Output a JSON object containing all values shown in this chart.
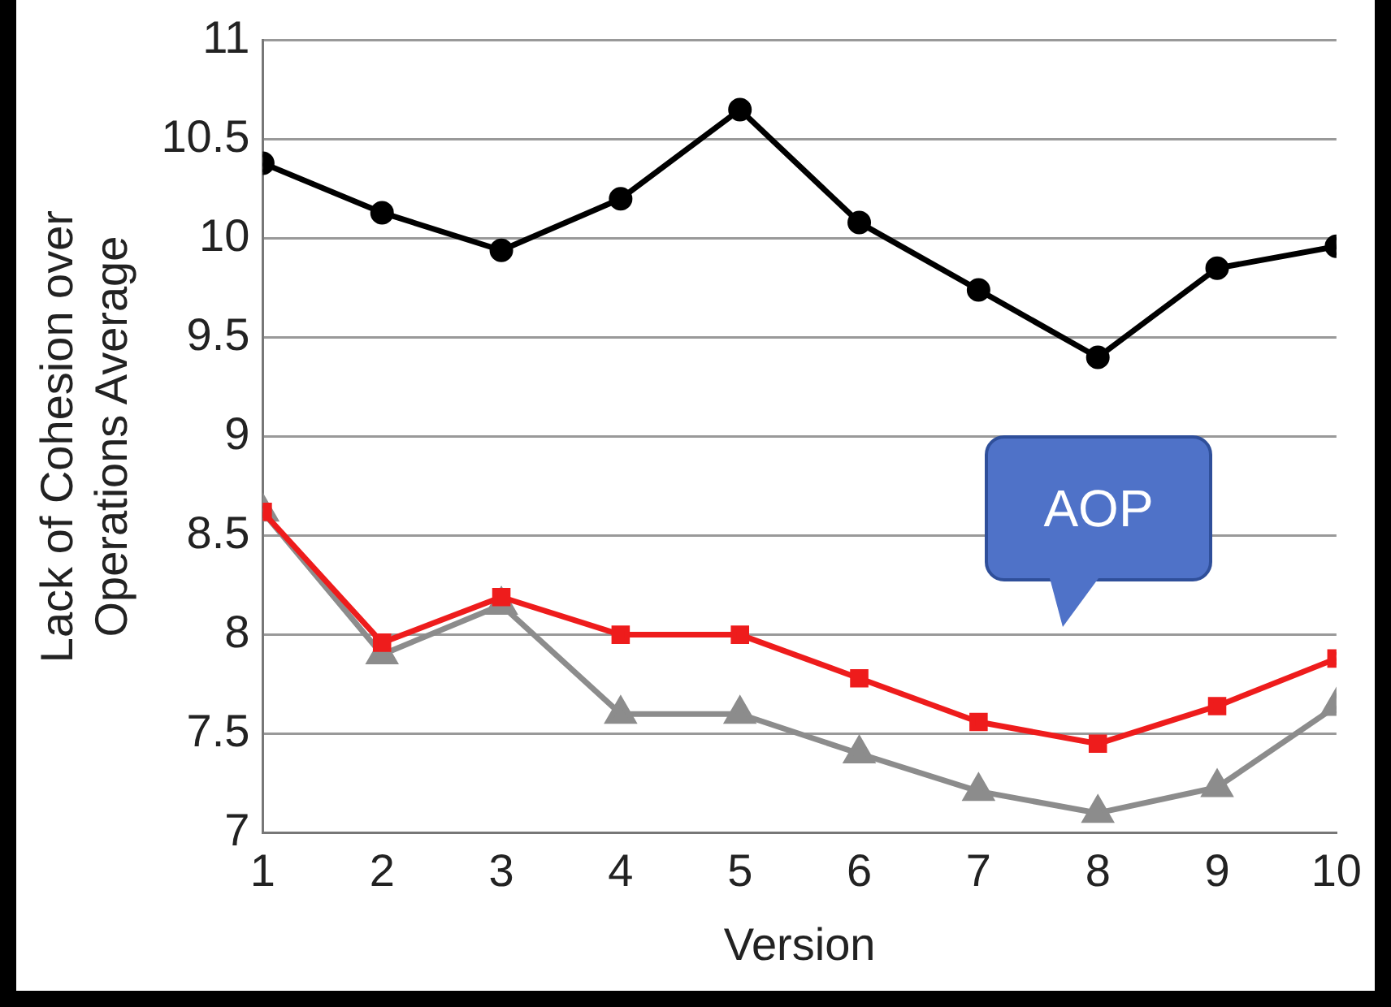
{
  "chart_data": {
    "type": "line",
    "xlabel": "Version",
    "ylabel": "Lack of Cohesion over Operations Average",
    "x": [
      1,
      2,
      3,
      4,
      5,
      6,
      7,
      8,
      9,
      10
    ],
    "xlim": [
      1,
      10
    ],
    "xticks": [
      1,
      2,
      3,
      4,
      5,
      6,
      7,
      8,
      9,
      10
    ],
    "ylim": [
      7,
      11
    ],
    "yticks": [
      7,
      7.5,
      8,
      8.5,
      9,
      9.5,
      10,
      10.5,
      11
    ],
    "grid": "y",
    "legend": false,
    "line_style": "solid",
    "series": [
      {
        "color": "#000000",
        "marker": "circle",
        "values": [
          10.38,
          10.13,
          9.94,
          10.2,
          10.65,
          10.08,
          9.74,
          9.4,
          9.85,
          9.96
        ]
      },
      {
        "color": "#ee1c1c",
        "marker": "square",
        "values": [
          8.62,
          7.96,
          8.19,
          8.0,
          8.0,
          7.78,
          7.56,
          7.45,
          7.64,
          7.88
        ]
      },
      {
        "color": "#8c8c8c",
        "marker": "triangle",
        "values": [
          8.62,
          7.9,
          8.15,
          7.6,
          7.6,
          7.4,
          7.21,
          7.1,
          7.23,
          7.64
        ]
      }
    ],
    "annotations": [
      "AOP"
    ]
  }
}
